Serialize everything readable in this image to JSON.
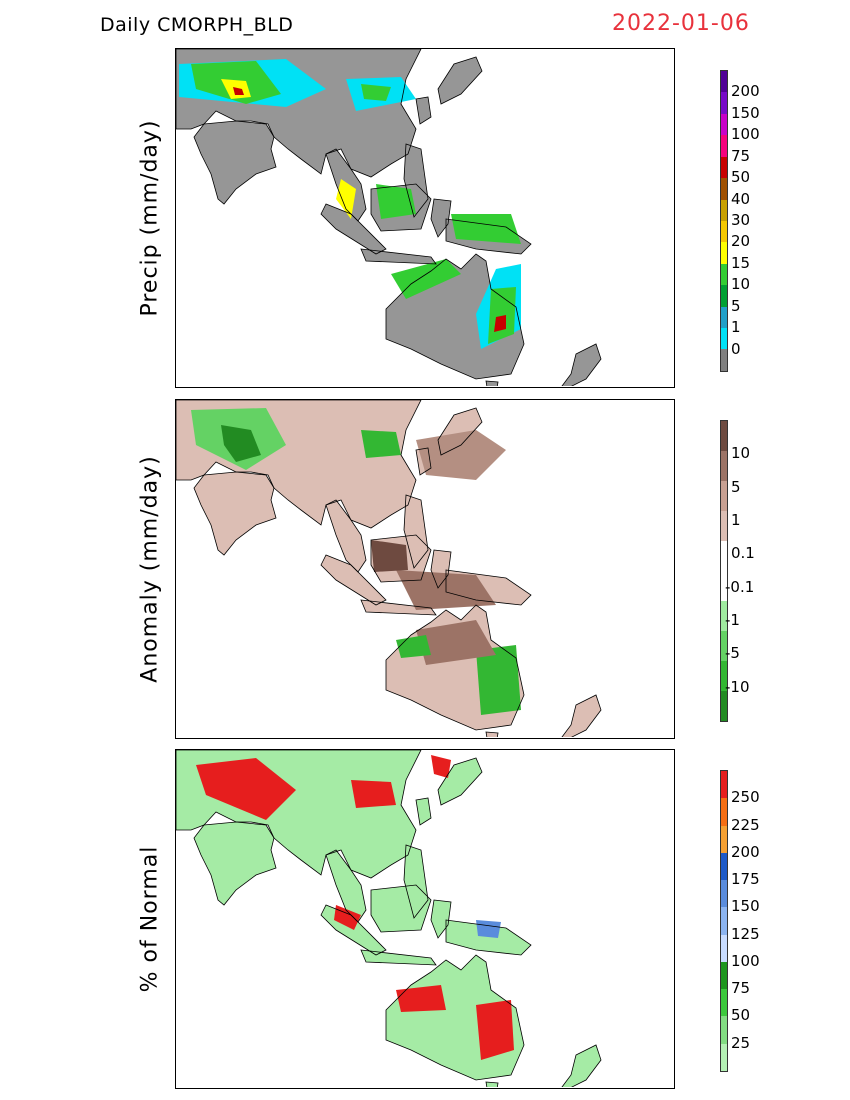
{
  "header": {
    "product": "Daily CMORPH_BLD",
    "date": "2022-01-06"
  },
  "panels": [
    {
      "id": "precip",
      "ylabel": "Precip (mm/day)",
      "land": "#969696",
      "colorbar": {
        "labels": [
          "0",
          "1",
          "5",
          "10",
          "15",
          "20",
          "30",
          "40",
          "50",
          "75",
          "100",
          "150",
          "200"
        ],
        "colors": [
          "#808080",
          "#00e1f5",
          "#21a0c8",
          "#00a032",
          "#33cd33",
          "#ffff00",
          "#f5c800",
          "#c8a000",
          "#a05000",
          "#c80000",
          "#f5007d",
          "#c800c8",
          "#780ac8",
          "#500096"
        ]
      },
      "blobs": [
        {
          "c": "#00e1f5",
          "pts": [
            [
              3,
              15
            ],
            [
              110,
              10
            ],
            [
              150,
              40
            ],
            [
              110,
              58
            ],
            [
              3,
              48
            ]
          ]
        },
        {
          "c": "#00e1f5",
          "pts": [
            [
              170,
              30
            ],
            [
              225,
              28
            ],
            [
              240,
              50
            ],
            [
              180,
              62
            ]
          ]
        },
        {
          "c": "#33cd33",
          "pts": [
            [
              15,
              15
            ],
            [
              80,
              12
            ],
            [
              105,
              45
            ],
            [
              70,
              55
            ],
            [
              20,
              40
            ]
          ]
        },
        {
          "c": "#ffff00",
          "pts": [
            [
              45,
              30
            ],
            [
              70,
              32
            ],
            [
              75,
              48
            ],
            [
              55,
              50
            ]
          ]
        },
        {
          "c": "#c80000",
          "pts": [
            [
              57,
              38
            ],
            [
              66,
              40
            ],
            [
              68,
              46
            ],
            [
              59,
              46
            ]
          ]
        },
        {
          "c": "#33cd33",
          "pts": [
            [
              185,
              35
            ],
            [
              215,
              38
            ],
            [
              210,
              52
            ],
            [
              188,
              50
            ]
          ]
        },
        {
          "c": "#00e1f5",
          "pts": [
            [
              320,
              220
            ],
            [
              345,
              215
            ],
            [
              345,
              280
            ],
            [
              305,
              300
            ],
            [
              300,
              265
            ]
          ]
        },
        {
          "c": "#33cd33",
          "pts": [
            [
              315,
              240
            ],
            [
              340,
              238
            ],
            [
              338,
              285
            ],
            [
              312,
              295
            ]
          ]
        },
        {
          "c": "#c80000",
          "pts": [
            [
              320,
              268
            ],
            [
              330,
              266
            ],
            [
              330,
              280
            ],
            [
              318,
              283
            ]
          ]
        },
        {
          "c": "#33cd33",
          "pts": [
            [
              215,
              225
            ],
            [
              270,
              210
            ],
            [
              285,
              225
            ],
            [
              230,
              250
            ]
          ]
        },
        {
          "c": "#ffff00",
          "pts": [
            [
              165,
              130
            ],
            [
              180,
              140
            ],
            [
              175,
              170
            ],
            [
              160,
              150
            ]
          ]
        },
        {
          "c": "#33cd33",
          "pts": [
            [
              200,
              135
            ],
            [
              235,
              140
            ],
            [
              240,
              165
            ],
            [
              205,
              170
            ]
          ]
        },
        {
          "c": "#33cd33",
          "pts": [
            [
              275,
              165
            ],
            [
              335,
              165
            ],
            [
              345,
              195
            ],
            [
              280,
              190
            ]
          ]
        }
      ]
    },
    {
      "id": "anomaly",
      "ylabel": "Anomaly (mm/day)",
      "land": "#dcbeb4",
      "colorbar": {
        "labels": [
          "10",
          "5",
          "1",
          "0.1",
          "-0.1",
          "-1",
          "-5",
          "-10"
        ],
        "colors": [
          "#228b22",
          "#33b733",
          "#64d264",
          "#a0eba0",
          "#ffffff",
          "#ffffff",
          "#dcbeb4",
          "#c8a092",
          "#9c7366",
          "#6e4a40"
        ]
      },
      "blobs": [
        {
          "c": "#64d264",
          "pts": [
            [
              15,
              10
            ],
            [
              90,
              8
            ],
            [
              110,
              45
            ],
            [
              70,
              70
            ],
            [
              20,
              45
            ]
          ]
        },
        {
          "c": "#228b22",
          "pts": [
            [
              45,
              25
            ],
            [
              75,
              30
            ],
            [
              85,
              55
            ],
            [
              60,
              62
            ],
            [
              48,
              45
            ]
          ]
        },
        {
          "c": "#33b733",
          "pts": [
            [
              185,
              30
            ],
            [
              220,
              32
            ],
            [
              225,
              55
            ],
            [
              190,
              58
            ]
          ]
        },
        {
          "c": "#b48f82",
          "pts": [
            [
              240,
              40
            ],
            [
              300,
              30
            ],
            [
              330,
              50
            ],
            [
              300,
              80
            ],
            [
              250,
              75
            ]
          ]
        },
        {
          "c": "#9c7366",
          "pts": [
            [
              220,
              170
            ],
            [
              300,
              175
            ],
            [
              320,
              205
            ],
            [
              240,
              210
            ]
          ]
        },
        {
          "c": "#33b733",
          "pts": [
            [
              300,
              250
            ],
            [
              340,
              245
            ],
            [
              345,
              310
            ],
            [
              305,
              315
            ]
          ]
        },
        {
          "c": "#9c7366",
          "pts": [
            [
              240,
              230
            ],
            [
              300,
              220
            ],
            [
              320,
              255
            ],
            [
              250,
              265
            ]
          ]
        },
        {
          "c": "#6e4a40",
          "pts": [
            [
              195,
              140
            ],
            [
              230,
              145
            ],
            [
              232,
              170
            ],
            [
              198,
              172
            ]
          ]
        },
        {
          "c": "#33b733",
          "pts": [
            [
              220,
              240
            ],
            [
              250,
              235
            ],
            [
              255,
              255
            ],
            [
              225,
              258
            ]
          ]
        }
      ]
    },
    {
      "id": "percent",
      "ylabel": "% of Normal",
      "land": "#a5eba5",
      "colorbar": {
        "labels": [
          "25",
          "50",
          "75",
          "100",
          "125",
          "150",
          "175",
          "200",
          "225",
          "250"
        ],
        "colors": [
          "#b4f0b4",
          "#82dc82",
          "#3cc83c",
          "#1e961e",
          "#c8dcff",
          "#8cb4f0",
          "#5a8cdc",
          "#1e5ac8",
          "#f5a032",
          "#f56e14",
          "#e61e1e"
        ]
      },
      "blobs": [
        {
          "c": "#e61e1e",
          "pts": [
            [
              20,
              15
            ],
            [
              80,
              8
            ],
            [
              120,
              40
            ],
            [
              90,
              70
            ],
            [
              30,
              45
            ]
          ]
        },
        {
          "c": "#e61e1e",
          "pts": [
            [
              175,
              30
            ],
            [
              215,
              32
            ],
            [
              220,
              55
            ],
            [
              180,
              58
            ]
          ]
        },
        {
          "c": "#e61e1e",
          "pts": [
            [
              300,
              255
            ],
            [
              335,
              250
            ],
            [
              338,
              300
            ],
            [
              305,
              310
            ]
          ]
        },
        {
          "c": "#e61e1e",
          "pts": [
            [
              220,
              240
            ],
            [
              265,
              235
            ],
            [
              270,
              260
            ],
            [
              225,
              262
            ]
          ]
        },
        {
          "c": "#e61e1e",
          "pts": [
            [
              160,
              155
            ],
            [
              185,
              165
            ],
            [
              178,
              180
            ],
            [
              158,
              170
            ]
          ]
        },
        {
          "c": "#5a8cdc",
          "pts": [
            [
              300,
              170
            ],
            [
              325,
              172
            ],
            [
              322,
              188
            ],
            [
              302,
              186
            ]
          ]
        },
        {
          "c": "#e61e1e",
          "pts": [
            [
              255,
              5
            ],
            [
              275,
              10
            ],
            [
              272,
              28
            ],
            [
              258,
              24
            ]
          ]
        }
      ]
    }
  ]
}
